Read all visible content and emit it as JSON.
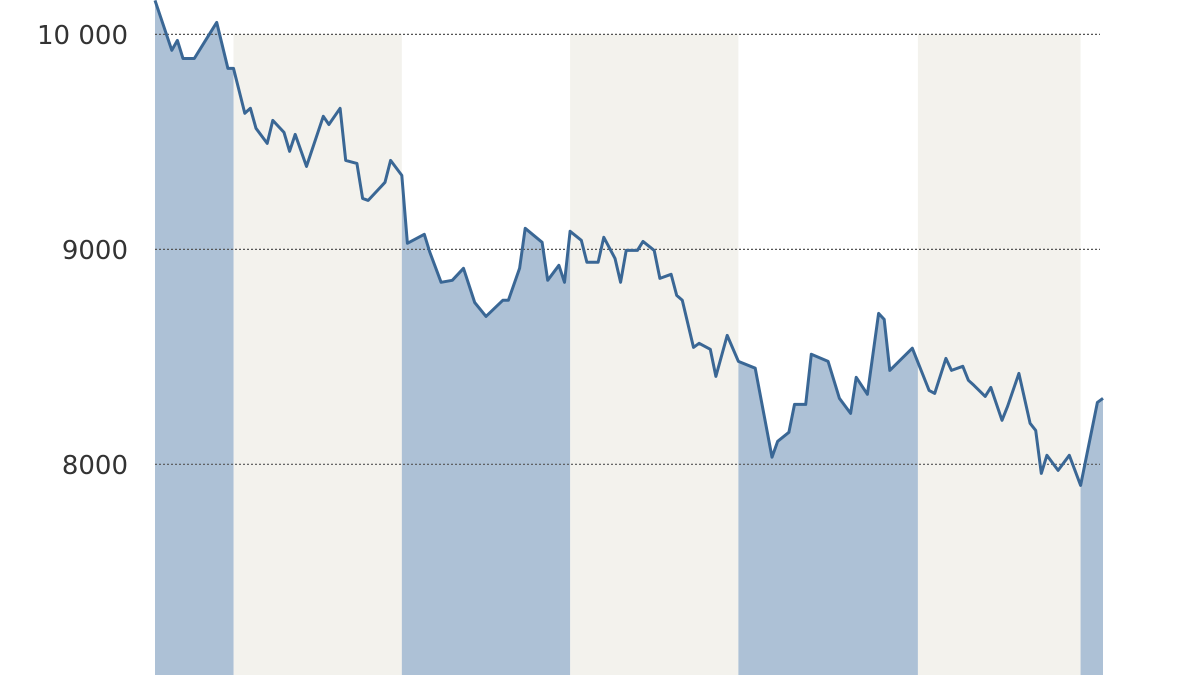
{
  "chart_data": {
    "type": "line",
    "x": [
      0,
      3,
      4,
      5,
      7,
      9,
      11,
      13,
      14,
      16,
      17,
      18,
      20,
      21,
      23,
      24,
      25,
      27,
      30,
      31,
      33,
      34,
      36,
      37,
      38,
      41,
      42,
      44,
      45,
      48,
      49,
      51,
      53,
      55,
      57,
      59,
      62,
      63,
      65,
      66,
      69,
      70,
      72,
      73,
      74,
      76,
      77,
      79,
      80,
      82,
      83,
      84,
      86,
      87,
      89,
      90,
      92,
      93,
      94,
      96,
      97,
      99,
      100,
      102,
      104,
      107,
      110,
      111,
      113,
      114,
      116,
      117,
      120,
      122,
      124,
      125,
      127,
      129,
      130,
      131,
      135,
      138,
      139,
      141,
      142,
      144,
      145,
      146,
      148,
      149,
      151,
      152,
      154,
      156,
      157,
      158,
      159,
      161,
      163,
      165,
      168,
      169
    ],
    "series": [
      {
        "color": "#3a6795",
        "values": [
          10158,
          9926,
          9972,
          9888,
          9888,
          9972,
          10056,
          9842,
          9842,
          9633,
          9656,
          9563,
          9493,
          9600,
          9544,
          9456,
          9535,
          9386,
          9619,
          9581,
          9656,
          9414,
          9400,
          9237,
          9228,
          9312,
          9414,
          9344,
          9028,
          9070,
          8986,
          8847,
          8856,
          8912,
          8753,
          8688,
          8763,
          8763,
          8912,
          9098,
          9033,
          8856,
          8926,
          8847,
          9084,
          9042,
          8940,
          8940,
          9056,
          8958,
          8847,
          8995,
          8995,
          9037,
          8995,
          8865,
          8884,
          8786,
          8763,
          8544,
          8563,
          8535,
          8409,
          8600,
          8479,
          8447,
          8033,
          8107,
          8149,
          8279,
          8279,
          8512,
          8479,
          8307,
          8237,
          8405,
          8326,
          8702,
          8674,
          8437,
          8540,
          8344,
          8330,
          8493,
          8437,
          8456,
          8391,
          8367,
          8316,
          8358,
          8205,
          8270,
          8423,
          8191,
          8158,
          7958,
          8042,
          7972,
          8042,
          7902,
          8288,
          8307
        ]
      }
    ],
    "xlim": [
      0,
      169
    ],
    "ylim": [
      7020,
      10160
    ],
    "yticks": [
      8000,
      9000,
      {
        "value": 10000,
        "label": "10 000"
      }
    ],
    "grid": true,
    "bands": [
      {
        "from": 0,
        "to": 14,
        "color": "#adc1d6",
        "fill": "below-line"
      },
      {
        "from": 14,
        "to": 44,
        "color": "#f3f2ed",
        "fill": "full"
      },
      {
        "from": 44,
        "to": 74,
        "color": "#adc1d6",
        "fill": "below-line"
      },
      {
        "from": 74,
        "to": 104,
        "color": "#f3f2ed",
        "fill": "full"
      },
      {
        "from": 104,
        "to": 136,
        "color": "#adc1d6",
        "fill": "below-line"
      },
      {
        "from": 136,
        "to": 165,
        "color": "#f3f2ed",
        "fill": "full"
      },
      {
        "from": 165,
        "to": 169,
        "color": "#adc1d6",
        "fill": "below-line"
      }
    ]
  }
}
